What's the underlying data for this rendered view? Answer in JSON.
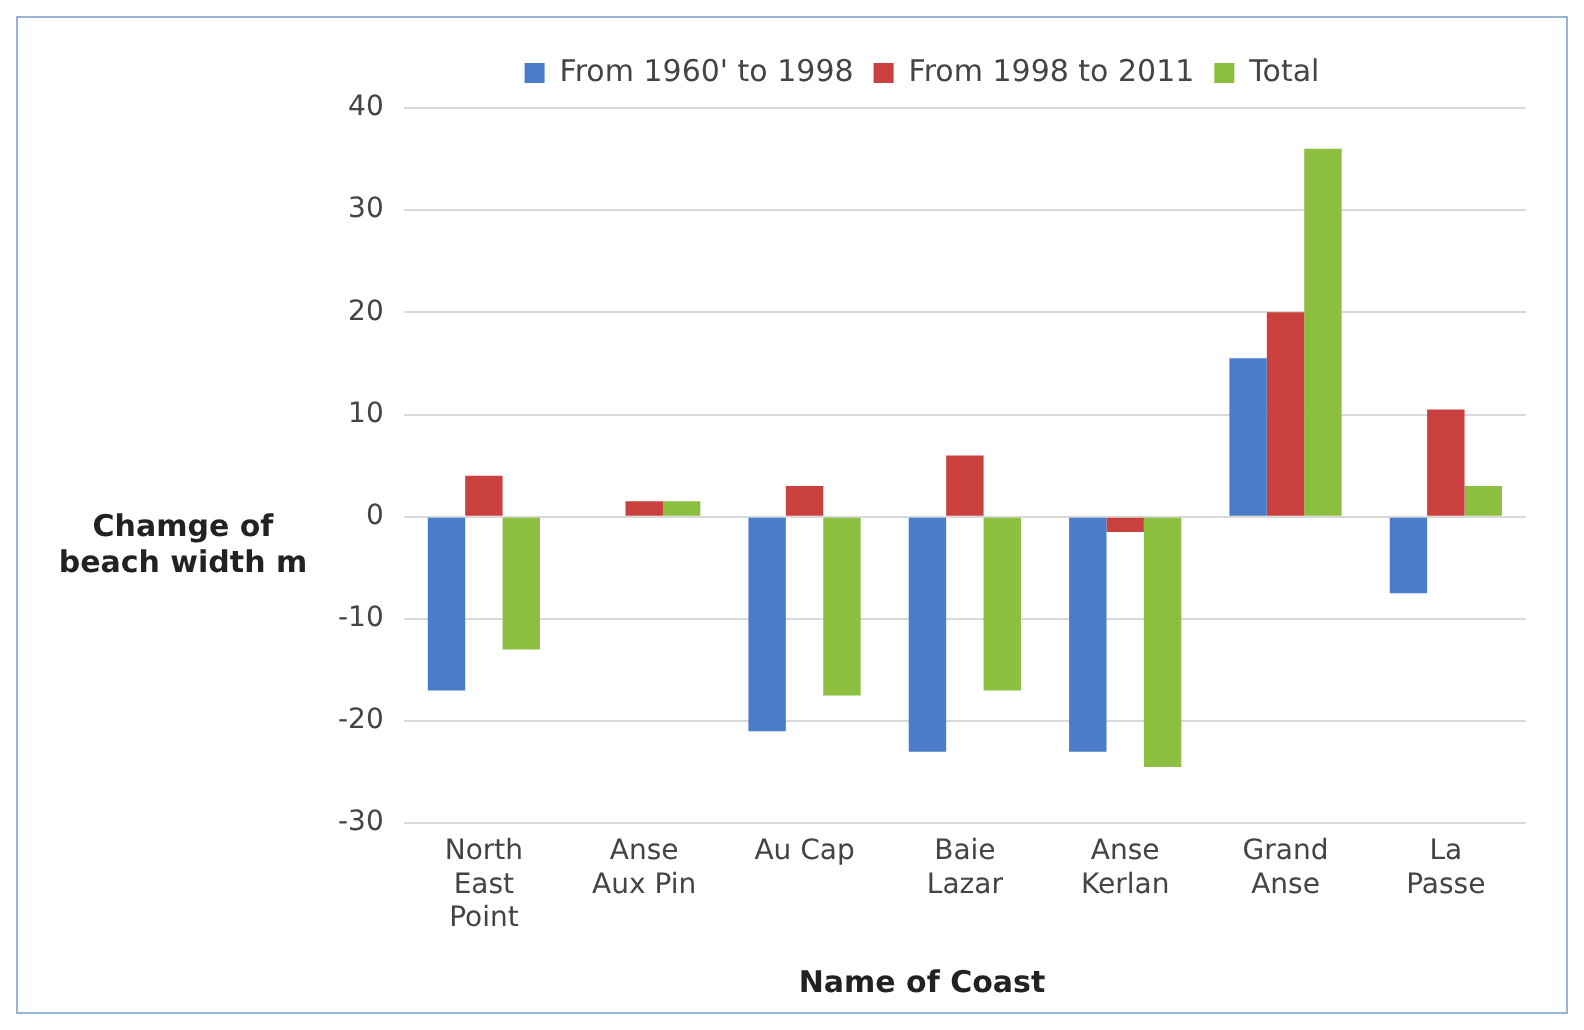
{
  "chart_data": {
    "type": "bar",
    "xlabel": "Name of Coast",
    "ylabel": "Chamge of beach width m",
    "categories": [
      "North East Point",
      "Anse Aux Pin",
      "Au Cap",
      "Baie Lazar",
      "Anse Kerlan",
      "Grand Anse",
      "La Passe"
    ],
    "series": [
      {
        "name": "From 1960' to 1998",
        "color": "#4a7cc9",
        "values": [
          -17,
          0,
          -21,
          -23,
          -23,
          15.5,
          -7.5
        ]
      },
      {
        "name": "From 1998 to 2011",
        "color": "#c9403f",
        "values": [
          4,
          1.5,
          3,
          6,
          -1.5,
          20,
          10.5
        ]
      },
      {
        "name": "Total",
        "color": "#8cbf3f",
        "values": [
          -13,
          1.5,
          -17.5,
          -17,
          -24.5,
          36,
          3
        ]
      }
    ],
    "ylim": [
      -30,
      40
    ],
    "yticks": [
      -30,
      -20,
      -10,
      0,
      10,
      20,
      30,
      40
    ],
    "grid": "y",
    "legend": "top"
  }
}
